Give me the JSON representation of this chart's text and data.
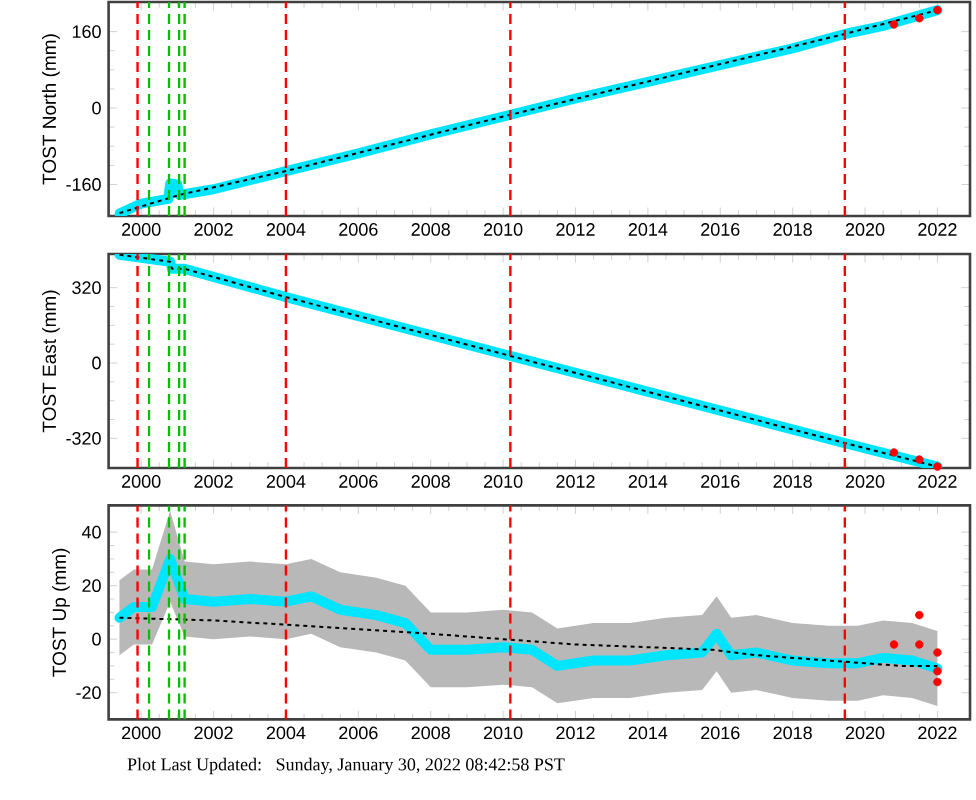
{
  "chart_data": [
    {
      "type": "line",
      "ylabel": "TOST North (mm)",
      "xlim": [
        1999.1,
        2022.9
      ],
      "ylim": [
        -226,
        222
      ],
      "xticks": [
        2000,
        2002,
        2004,
        2006,
        2008,
        2010,
        2012,
        2014,
        2016,
        2018,
        2020,
        2022
      ],
      "yticks": [
        -160,
        0,
        160
      ],
      "grid": false,
      "marker": "none",
      "series": [
        {
          "color": "#00e5ff",
          "x": [
            1999.4,
            2000.0,
            2000.75,
            2000.8,
            2001.0,
            2001.05,
            2002.0,
            2004.0,
            2006.0,
            2008.0,
            2010.2,
            2012.0,
            2014.0,
            2016.0,
            2018.0,
            2019.44,
            2020.5,
            2022.0
          ],
          "values": [
            -221,
            -200,
            -190,
            -158,
            -160,
            -182,
            -170,
            -132,
            -95,
            -55,
            -14,
            20,
            55,
            90,
            125,
            155,
            172,
            205
          ]
        },
        {
          "color": "#000000",
          "line_style": "dashed",
          "x": [
            1999.4,
            2001.05,
            2004.0,
            2010.2,
            2019.44,
            2022.0
          ],
          "values": [
            -220,
            -182,
            -132,
            -14,
            155,
            205
          ]
        },
        {
          "type": "scatter",
          "marker": "circle",
          "color": "#ff0000",
          "x": [
            2020.8,
            2021.5,
            2022.0
          ],
          "values": [
            175,
            188,
            205
          ]
        }
      ],
      "ref_lines": [
        {
          "axis": "x",
          "value": 1999.9,
          "color": "#ff0000",
          "line_style": "dashed"
        },
        {
          "axis": "x",
          "value": 2000.22,
          "color": "#00c000",
          "line_style": "dashed"
        },
        {
          "axis": "x",
          "value": 2000.77,
          "color": "#00c000",
          "line_style": "dashed"
        },
        {
          "axis": "x",
          "value": 2001.05,
          "color": "#00c000",
          "line_style": "dashed"
        },
        {
          "axis": "x",
          "value": 2001.2,
          "color": "#00c000",
          "line_style": "dashed"
        },
        {
          "axis": "x",
          "value": 2004.0,
          "color": "#ff0000",
          "line_style": "dashed"
        },
        {
          "axis": "x",
          "value": 2010.2,
          "color": "#ff0000",
          "line_style": "dashed"
        },
        {
          "axis": "x",
          "value": 2019.44,
          "color": "#ff0000",
          "line_style": "dashed"
        }
      ]
    },
    {
      "type": "line",
      "ylabel": "TOST East (mm)",
      "xlim": [
        1999.1,
        2022.9
      ],
      "ylim": [
        -446,
        463
      ],
      "xticks": [
        2000,
        2002,
        2004,
        2006,
        2008,
        2010,
        2012,
        2014,
        2016,
        2018,
        2020,
        2022
      ],
      "yticks": [
        -320,
        0,
        320
      ],
      "grid": false,
      "marker": "none",
      "series": [
        {
          "color": "#00e5ff",
          "x": [
            1999.4,
            2000.8,
            2000.85,
            2001.2,
            2004.0,
            2010.2,
            2019.44,
            2022.0
          ],
          "values": [
            460,
            430,
            400,
            400,
            280,
            30,
            -340,
            -440
          ]
        },
        {
          "color": "#000000",
          "line_style": "dashed",
          "x": [
            1999.4,
            2000.8,
            2000.85,
            2001.2,
            2004.0,
            2010.2,
            2019.44,
            2022.0
          ],
          "values": [
            460,
            430,
            400,
            400,
            280,
            30,
            -340,
            -440
          ]
        },
        {
          "type": "scatter",
          "marker": "circle",
          "color": "#ff0000",
          "x": [
            2020.8,
            2021.5,
            2022.0
          ],
          "values": [
            -380,
            -410,
            -440
          ]
        }
      ],
      "ref_lines": [
        {
          "axis": "x",
          "value": 1999.9,
          "color": "#ff0000",
          "line_style": "dashed"
        },
        {
          "axis": "x",
          "value": 2000.22,
          "color": "#00c000",
          "line_style": "dashed"
        },
        {
          "axis": "x",
          "value": 2000.77,
          "color": "#00c000",
          "line_style": "dashed"
        },
        {
          "axis": "x",
          "value": 2001.05,
          "color": "#00c000",
          "line_style": "dashed"
        },
        {
          "axis": "x",
          "value": 2001.2,
          "color": "#00c000",
          "line_style": "dashed"
        },
        {
          "axis": "x",
          "value": 2004.0,
          "color": "#ff0000",
          "line_style": "dashed"
        },
        {
          "axis": "x",
          "value": 2010.2,
          "color": "#ff0000",
          "line_style": "dashed"
        },
        {
          "axis": "x",
          "value": 2019.44,
          "color": "#ff0000",
          "line_style": "dashed"
        }
      ]
    },
    {
      "type": "line",
      "ylabel": "TOST Up (mm)",
      "xlim": [
        1999.1,
        2022.9
      ],
      "ylim": [
        -30,
        50
      ],
      "xticks": [
        2000,
        2002,
        2004,
        2006,
        2008,
        2010,
        2012,
        2014,
        2016,
        2018,
        2020,
        2022
      ],
      "yticks": [
        -20,
        0,
        20,
        40
      ],
      "grid": false,
      "marker": "none",
      "annotations": [
        "Plot Last Updated:   Sunday, January 30, 2022 08:42:58 PST"
      ],
      "series": [
        {
          "color": "#00e5ff",
          "x": [
            1999.4,
            1999.8,
            2000.3,
            2000.8,
            2001.2,
            2002.0,
            2003.0,
            2004.0,
            2004.7,
            2005.5,
            2006.5,
            2007.3,
            2008.0,
            2009.0,
            2010.0,
            2010.8,
            2011.5,
            2012.5,
            2013.5,
            2014.5,
            2015.5,
            2015.9,
            2016.3,
            2017.0,
            2018.0,
            2019.0,
            2019.8,
            2020.5,
            2021.3,
            2022.0
          ],
          "values": [
            8,
            12,
            12,
            30,
            15,
            14,
            15,
            14,
            16,
            11,
            9,
            6,
            -4,
            -4,
            -3,
            -4,
            -10,
            -8,
            -8,
            -6,
            -5,
            2,
            -6,
            -5,
            -8,
            -9,
            -9,
            -7,
            -8,
            -11
          ],
          "lower": [
            -6,
            -2,
            -2,
            14,
            1,
            0,
            1,
            0,
            2,
            -3,
            -5,
            -8,
            -18,
            -18,
            -17,
            -18,
            -24,
            -22,
            -22,
            -20,
            -19,
            -12,
            -20,
            -19,
            -22,
            -23,
            -23,
            -21,
            -22,
            -25
          ],
          "upper": [
            22,
            26,
            26,
            48,
            29,
            28,
            29,
            28,
            30,
            25,
            23,
            20,
            10,
            10,
            11,
            10,
            4,
            6,
            6,
            8,
            9,
            16,
            8,
            9,
            6,
            5,
            5,
            7,
            6,
            3
          ]
        },
        {
          "color": "#000000",
          "line_style": "dashed",
          "x": [
            1999.4,
            2002.0,
            2004.5,
            2008.0,
            2010.0,
            2012.0,
            2014.0,
            2015.8,
            2017.0,
            2019.0,
            2021.0,
            2022.0
          ],
          "values": [
            8,
            7,
            5,
            2,
            0,
            -2,
            -3,
            -4,
            -6,
            -8,
            -10,
            -10
          ]
        },
        {
          "type": "scatter",
          "marker": "circle",
          "color": "#ff0000",
          "x": [
            2020.8,
            2021.5,
            2021.5,
            2022.0,
            2022.0,
            2022.0
          ],
          "values": [
            -2,
            9,
            -2,
            -5,
            -12,
            -16
          ]
        }
      ],
      "ref_lines": [
        {
          "axis": "x",
          "value": 1999.9,
          "color": "#ff0000",
          "line_style": "dashed"
        },
        {
          "axis": "x",
          "value": 2000.22,
          "color": "#00c000",
          "line_style": "dashed"
        },
        {
          "axis": "x",
          "value": 2000.77,
          "color": "#00c000",
          "line_style": "dashed"
        },
        {
          "axis": "x",
          "value": 2001.05,
          "color": "#00c000",
          "line_style": "dashed"
        },
        {
          "axis": "x",
          "value": 2001.2,
          "color": "#00c000",
          "line_style": "dashed"
        },
        {
          "axis": "x",
          "value": 2004.0,
          "color": "#ff0000",
          "line_style": "dashed"
        },
        {
          "axis": "x",
          "value": 2010.2,
          "color": "#ff0000",
          "line_style": "dashed"
        },
        {
          "axis": "x",
          "value": 2019.44,
          "color": "#ff0000",
          "line_style": "dashed"
        }
      ]
    }
  ]
}
